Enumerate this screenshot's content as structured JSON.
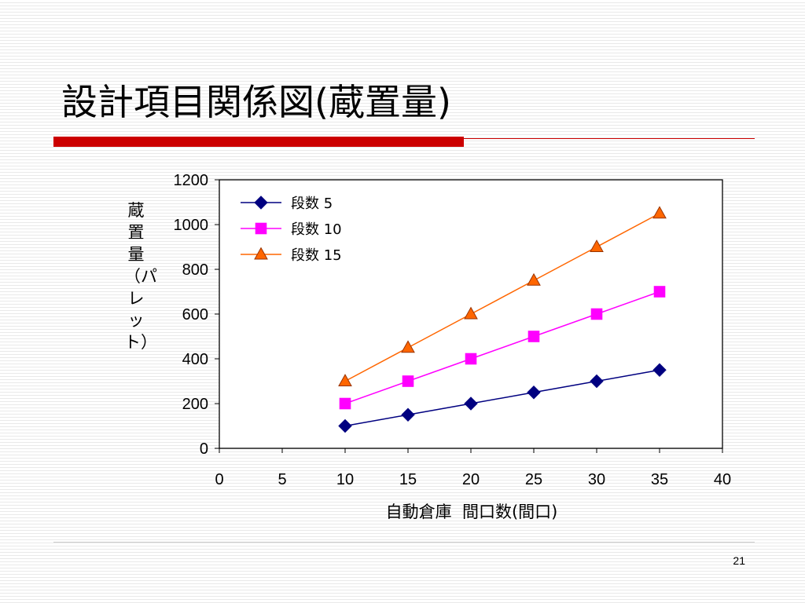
{
  "slide": {
    "title": "設計項目関係図(蔵置量)",
    "page_number": "21",
    "accent_color": "#cc0000"
  },
  "chart_data": {
    "type": "line",
    "xlabel": "自動倉庫  間口数(間口)",
    "ylabel": "蔵置量（パレット）",
    "xlim": [
      0,
      40
    ],
    "ylim": [
      0,
      1200
    ],
    "x_ticks": [
      0,
      5,
      10,
      15,
      20,
      25,
      30,
      35,
      40
    ],
    "y_ticks": [
      0,
      200,
      400,
      600,
      800,
      1000,
      1200
    ],
    "grid": false,
    "legend_position": "top-left",
    "x": [
      10,
      15,
      20,
      25,
      30,
      35
    ],
    "series": [
      {
        "name": "段数 5",
        "values": [
          100,
          150,
          200,
          250,
          300,
          350
        ],
        "color": "#000080",
        "marker": "diamond"
      },
      {
        "name": "段数 10",
        "values": [
          200,
          300,
          400,
          500,
          600,
          700
        ],
        "color": "#ff00ff",
        "marker": "square"
      },
      {
        "name": "段数 15",
        "values": [
          300,
          450,
          600,
          750,
          900,
          1050
        ],
        "color": "#ff6600",
        "marker": "triangle"
      }
    ]
  }
}
